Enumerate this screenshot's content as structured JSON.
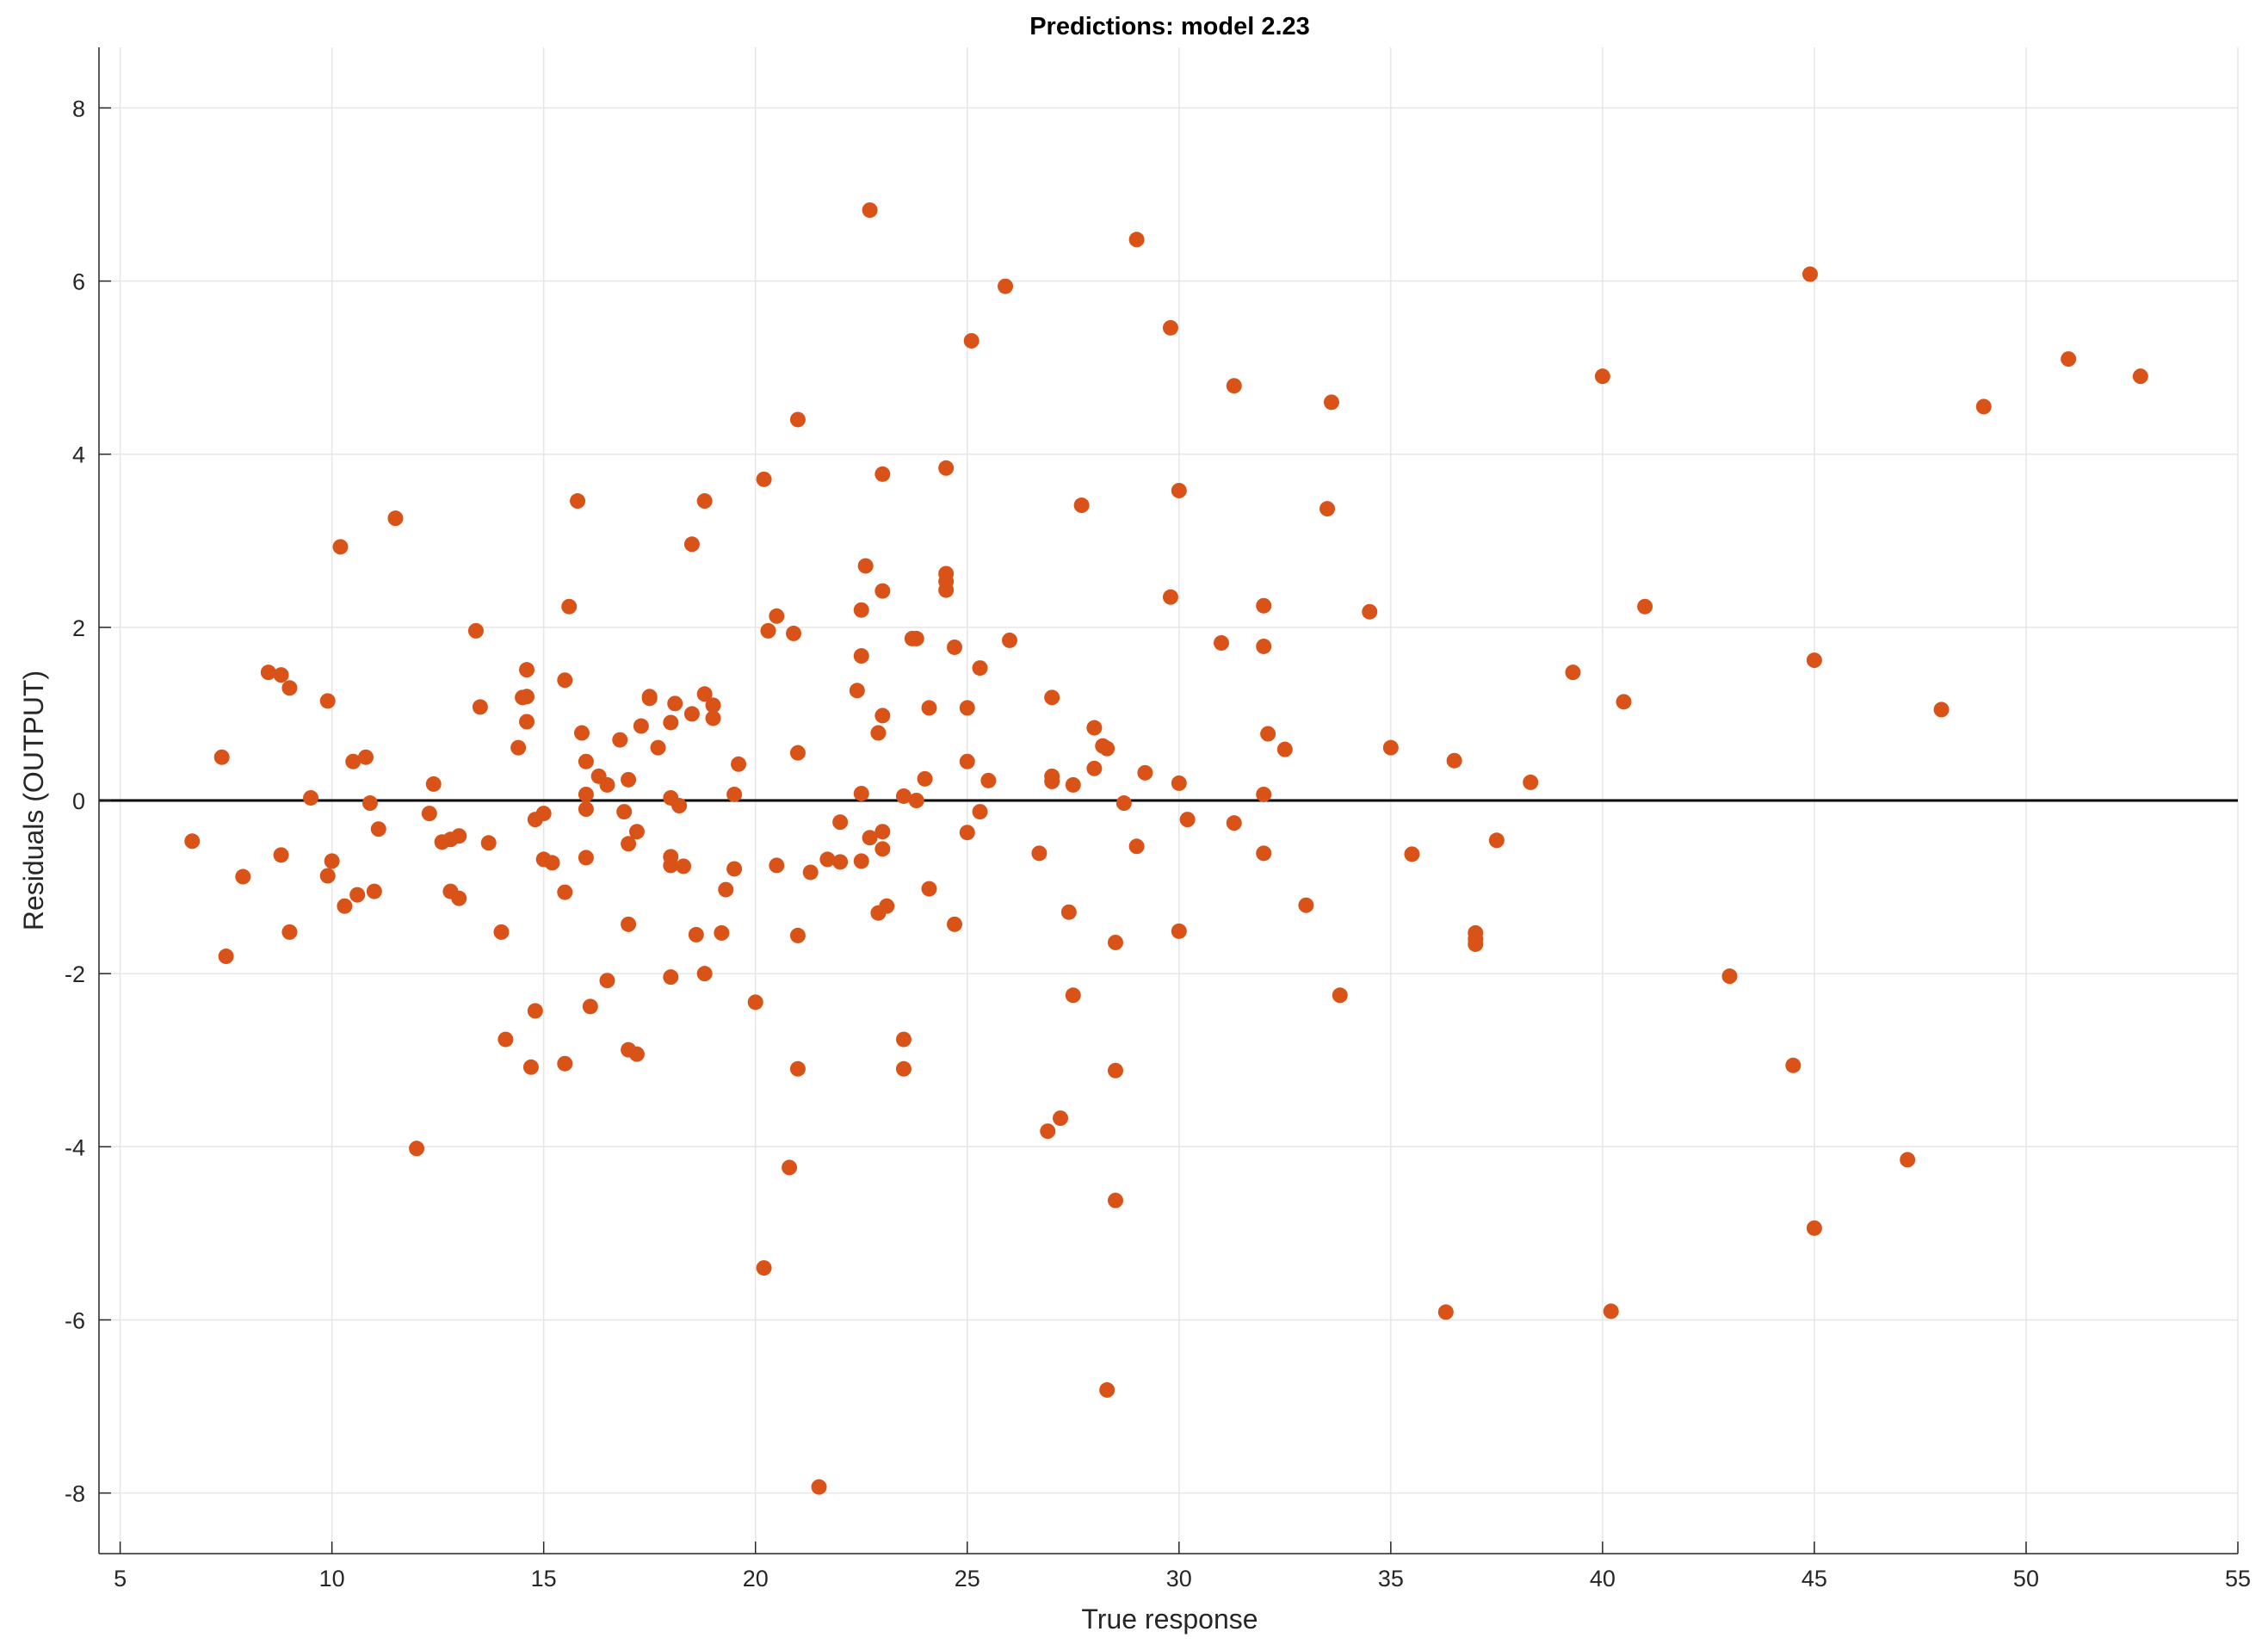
{
  "chart_data": {
    "type": "scatter",
    "title": "Predictions: model 2.23",
    "xlabel": "True response",
    "ylabel": "Residuals (OUTPUT)",
    "xlim": [
      4.5,
      55
    ],
    "ylim": [
      -8.7,
      8.7
    ],
    "xticks": [
      5,
      10,
      15,
      20,
      25,
      30,
      35,
      40,
      45,
      50,
      55
    ],
    "yticks": [
      -8,
      -6,
      -4,
      -2,
      0,
      2,
      4,
      6,
      8
    ],
    "grid": true,
    "reference_line": 0,
    "marker_color": "#D95319",
    "line_color": "#000000",
    "grid_color": "#E6E6E6",
    "series": [
      {
        "points": [
          [
            6.7,
            -0.47
          ],
          [
            7.4,
            0.5
          ],
          [
            7.5,
            -1.8
          ],
          [
            7.9,
            -0.88
          ],
          [
            8.5,
            1.48
          ],
          [
            8.8,
            1.45
          ],
          [
            8.8,
            -0.63
          ],
          [
            9.0,
            1.3
          ],
          [
            9.0,
            -1.52
          ],
          [
            9.5,
            0.03
          ],
          [
            9.9,
            1.15
          ],
          [
            9.9,
            -0.87
          ],
          [
            10.0,
            -0.7
          ],
          [
            10.2,
            2.93
          ],
          [
            10.3,
            -1.22
          ],
          [
            10.5,
            0.45
          ],
          [
            10.6,
            -1.09
          ],
          [
            10.8,
            0.5
          ],
          [
            10.9,
            -0.03
          ],
          [
            11.0,
            -1.05
          ],
          [
            11.1,
            -0.33
          ],
          [
            11.5,
            3.26
          ],
          [
            12.0,
            -4.02
          ],
          [
            12.3,
            -0.15
          ],
          [
            12.4,
            0.19
          ],
          [
            12.6,
            -0.48
          ],
          [
            12.8,
            -0.45
          ],
          [
            12.8,
            -1.05
          ],
          [
            13.0,
            -0.41
          ],
          [
            13.0,
            -1.13
          ],
          [
            13.4,
            1.96
          ],
          [
            13.5,
            1.08
          ],
          [
            13.7,
            -0.49
          ],
          [
            14.0,
            -1.52
          ],
          [
            14.1,
            -2.76
          ],
          [
            14.4,
            0.61
          ],
          [
            14.5,
            1.19
          ],
          [
            14.6,
            1.2
          ],
          [
            14.6,
            0.91
          ],
          [
            14.6,
            1.51
          ],
          [
            14.7,
            -3.08
          ],
          [
            14.8,
            -0.22
          ],
          [
            14.8,
            -2.43
          ],
          [
            15.0,
            -0.68
          ],
          [
            15.0,
            -0.15
          ],
          [
            15.2,
            -0.72
          ],
          [
            15.5,
            1.39
          ],
          [
            15.5,
            -1.06
          ],
          [
            15.5,
            -3.04
          ],
          [
            15.6,
            2.24
          ],
          [
            15.8,
            3.46
          ],
          [
            15.9,
            0.78
          ],
          [
            16.0,
            0.45
          ],
          [
            16.0,
            0.07
          ],
          [
            16.0,
            -0.1
          ],
          [
            16.0,
            -0.66
          ],
          [
            16.1,
            -2.38
          ],
          [
            16.3,
            0.28
          ],
          [
            16.5,
            0.18
          ],
          [
            16.5,
            -2.08
          ],
          [
            16.8,
            0.7
          ],
          [
            16.9,
            -0.13
          ],
          [
            17.0,
            0.24
          ],
          [
            17.0,
            -0.5
          ],
          [
            17.0,
            -1.43
          ],
          [
            17.0,
            -2.88
          ],
          [
            17.2,
            -0.36
          ],
          [
            17.2,
            -2.93
          ],
          [
            17.3,
            0.86
          ],
          [
            17.5,
            1.18
          ],
          [
            17.5,
            1.2
          ],
          [
            17.7,
            0.61
          ],
          [
            18.0,
            0.9
          ],
          [
            18.0,
            0.03
          ],
          [
            18.0,
            -0.65
          ],
          [
            18.0,
            -0.75
          ],
          [
            18.0,
            -2.04
          ],
          [
            18.1,
            1.12
          ],
          [
            18.2,
            -0.06
          ],
          [
            18.3,
            -0.76
          ],
          [
            18.5,
            2.96
          ],
          [
            18.5,
            1.0
          ],
          [
            18.6,
            -1.55
          ],
          [
            18.8,
            3.46
          ],
          [
            18.8,
            1.23
          ],
          [
            18.8,
            -2.0
          ],
          [
            19.0,
            1.1
          ],
          [
            19.0,
            0.95
          ],
          [
            19.2,
            -1.53
          ],
          [
            19.3,
            -1.03
          ],
          [
            19.5,
            0.07
          ],
          [
            19.5,
            -0.79
          ],
          [
            19.6,
            0.42
          ],
          [
            20.0,
            -2.33
          ],
          [
            20.2,
            3.71
          ],
          [
            20.2,
            -5.4
          ],
          [
            20.3,
            1.96
          ],
          [
            20.5,
            2.13
          ],
          [
            20.5,
            -0.75
          ],
          [
            20.8,
            -4.24
          ],
          [
            20.9,
            1.93
          ],
          [
            21.0,
            4.4
          ],
          [
            21.0,
            0.55
          ],
          [
            21.0,
            -1.56
          ],
          [
            21.0,
            -3.1
          ],
          [
            21.3,
            -0.83
          ],
          [
            21.5,
            -7.93
          ],
          [
            21.7,
            -0.68
          ],
          [
            22.0,
            -0.25
          ],
          [
            22.0,
            -0.71
          ],
          [
            22.4,
            1.27
          ],
          [
            22.5,
            2.2
          ],
          [
            22.5,
            1.67
          ],
          [
            22.5,
            0.08
          ],
          [
            22.5,
            -0.7
          ],
          [
            22.6,
            2.71
          ],
          [
            22.7,
            6.82
          ],
          [
            22.7,
            -0.43
          ],
          [
            22.9,
            0.78
          ],
          [
            22.9,
            -1.3
          ],
          [
            23.0,
            3.77
          ],
          [
            23.0,
            2.42
          ],
          [
            23.0,
            0.98
          ],
          [
            23.0,
            -0.36
          ],
          [
            23.0,
            -0.56
          ],
          [
            23.1,
            -1.22
          ],
          [
            23.5,
            0.05
          ],
          [
            23.5,
            -2.76
          ],
          [
            23.5,
            -3.1
          ],
          [
            23.7,
            1.87
          ],
          [
            23.8,
            1.87
          ],
          [
            23.8,
            0.0
          ],
          [
            24.0,
            0.25
          ],
          [
            24.1,
            1.07
          ],
          [
            24.1,
            -1.02
          ],
          [
            24.5,
            3.84
          ],
          [
            24.5,
            2.62
          ],
          [
            24.5,
            2.53
          ],
          [
            24.5,
            2.43
          ],
          [
            24.7,
            1.77
          ],
          [
            24.7,
            -1.43
          ],
          [
            25.0,
            1.07
          ],
          [
            25.0,
            0.45
          ],
          [
            25.0,
            -0.37
          ],
          [
            25.1,
            5.31
          ],
          [
            25.3,
            1.53
          ],
          [
            25.3,
            -0.13
          ],
          [
            25.5,
            0.23
          ],
          [
            25.9,
            5.94
          ],
          [
            26.0,
            1.85
          ],
          [
            26.7,
            -0.61
          ],
          [
            26.9,
            -3.82
          ],
          [
            27.0,
            1.19
          ],
          [
            27.0,
            0.28
          ],
          [
            27.0,
            0.22
          ],
          [
            27.2,
            -3.67
          ],
          [
            27.4,
            -1.29
          ],
          [
            27.5,
            -2.25
          ],
          [
            27.5,
            0.18
          ],
          [
            27.7,
            3.41
          ],
          [
            28.0,
            0.84
          ],
          [
            28.0,
            0.37
          ],
          [
            28.2,
            0.63
          ],
          [
            28.3,
            0.6
          ],
          [
            28.3,
            -6.81
          ],
          [
            28.5,
            -1.64
          ],
          [
            28.5,
            -3.12
          ],
          [
            28.5,
            -4.62
          ],
          [
            28.7,
            -0.03
          ],
          [
            29.0,
            6.48
          ],
          [
            29.0,
            -0.53
          ],
          [
            29.2,
            0.32
          ],
          [
            29.8,
            5.46
          ],
          [
            29.8,
            2.35
          ],
          [
            30.0,
            3.58
          ],
          [
            30.0,
            0.2
          ],
          [
            30.0,
            -1.51
          ],
          [
            30.2,
            -0.22
          ],
          [
            31.0,
            1.82
          ],
          [
            31.3,
            4.79
          ],
          [
            31.3,
            -0.26
          ],
          [
            32.0,
            2.25
          ],
          [
            32.0,
            1.78
          ],
          [
            32.0,
            0.07
          ],
          [
            32.0,
            -0.61
          ],
          [
            32.1,
            0.77
          ],
          [
            32.5,
            0.59
          ],
          [
            33.0,
            -1.21
          ],
          [
            33.5,
            3.37
          ],
          [
            33.6,
            4.6
          ],
          [
            33.8,
            -2.25
          ],
          [
            34.5,
            2.18
          ],
          [
            35.0,
            0.61
          ],
          [
            35.5,
            -0.62
          ],
          [
            36.3,
            -5.91
          ],
          [
            36.5,
            0.46
          ],
          [
            37.0,
            -1.53
          ],
          [
            37.0,
            -1.6
          ],
          [
            37.0,
            -1.66
          ],
          [
            37.5,
            -0.46
          ],
          [
            38.3,
            0.21
          ],
          [
            39.3,
            1.48
          ],
          [
            40.0,
            4.9
          ],
          [
            40.2,
            -5.9
          ],
          [
            40.5,
            1.14
          ],
          [
            41.0,
            2.24
          ],
          [
            43.0,
            -2.03
          ],
          [
            44.5,
            -3.06
          ],
          [
            44.9,
            6.08
          ],
          [
            45.0,
            1.62
          ],
          [
            45.0,
            -4.94
          ],
          [
            47.2,
            -4.15
          ],
          [
            48.0,
            1.05
          ],
          [
            49.0,
            4.55
          ],
          [
            51.0,
            5.1
          ],
          [
            52.7,
            4.9
          ]
        ]
      }
    ]
  }
}
